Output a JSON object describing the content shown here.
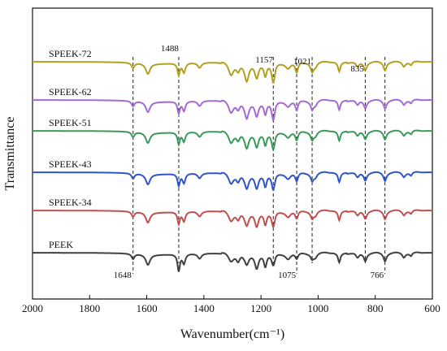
{
  "chart_data": {
    "type": "line",
    "xlabel": "Wavenumber(cm⁻¹)",
    "ylabel": "Transmittance",
    "xlim": [
      2000,
      600
    ],
    "x_reversed": true,
    "y_ticks_shown": false,
    "grid": false,
    "legend": "none; each spectrum is labelled directly at its left end, stacked with vertical offsets",
    "x_ticks": [
      "2000",
      "1800",
      "1600",
      "1400",
      "1200",
      "1000",
      "800",
      "600"
    ],
    "peak_markers": [
      {
        "wavenumber": 1648,
        "label": "1648"
      },
      {
        "wavenumber": 1488,
        "label": "1488"
      },
      {
        "wavenumber": 1157,
        "label": "1157"
      },
      {
        "wavenumber": 1075,
        "label": "1075"
      },
      {
        "wavenumber": 1021,
        "label": "1021"
      },
      {
        "wavenumber": 835,
        "label": "835"
      },
      {
        "wavenumber": 766,
        "label": "766"
      }
    ],
    "series": [
      {
        "name": "PEEK",
        "color": "#404040",
        "offset": 0
      },
      {
        "name": "SPEEK-34",
        "color": "#c0504d",
        "offset": 1
      },
      {
        "name": "SPEEK-43",
        "color": "#2f55c8",
        "offset": 2
      },
      {
        "name": "SPEEK-51",
        "color": "#3a9a5a",
        "offset": 3
      },
      {
        "name": "SPEEK-62",
        "color": "#a36ad6",
        "offset": 4
      },
      {
        "name": "SPEEK-72",
        "color": "#b3a01e",
        "offset": 5
      }
    ]
  }
}
